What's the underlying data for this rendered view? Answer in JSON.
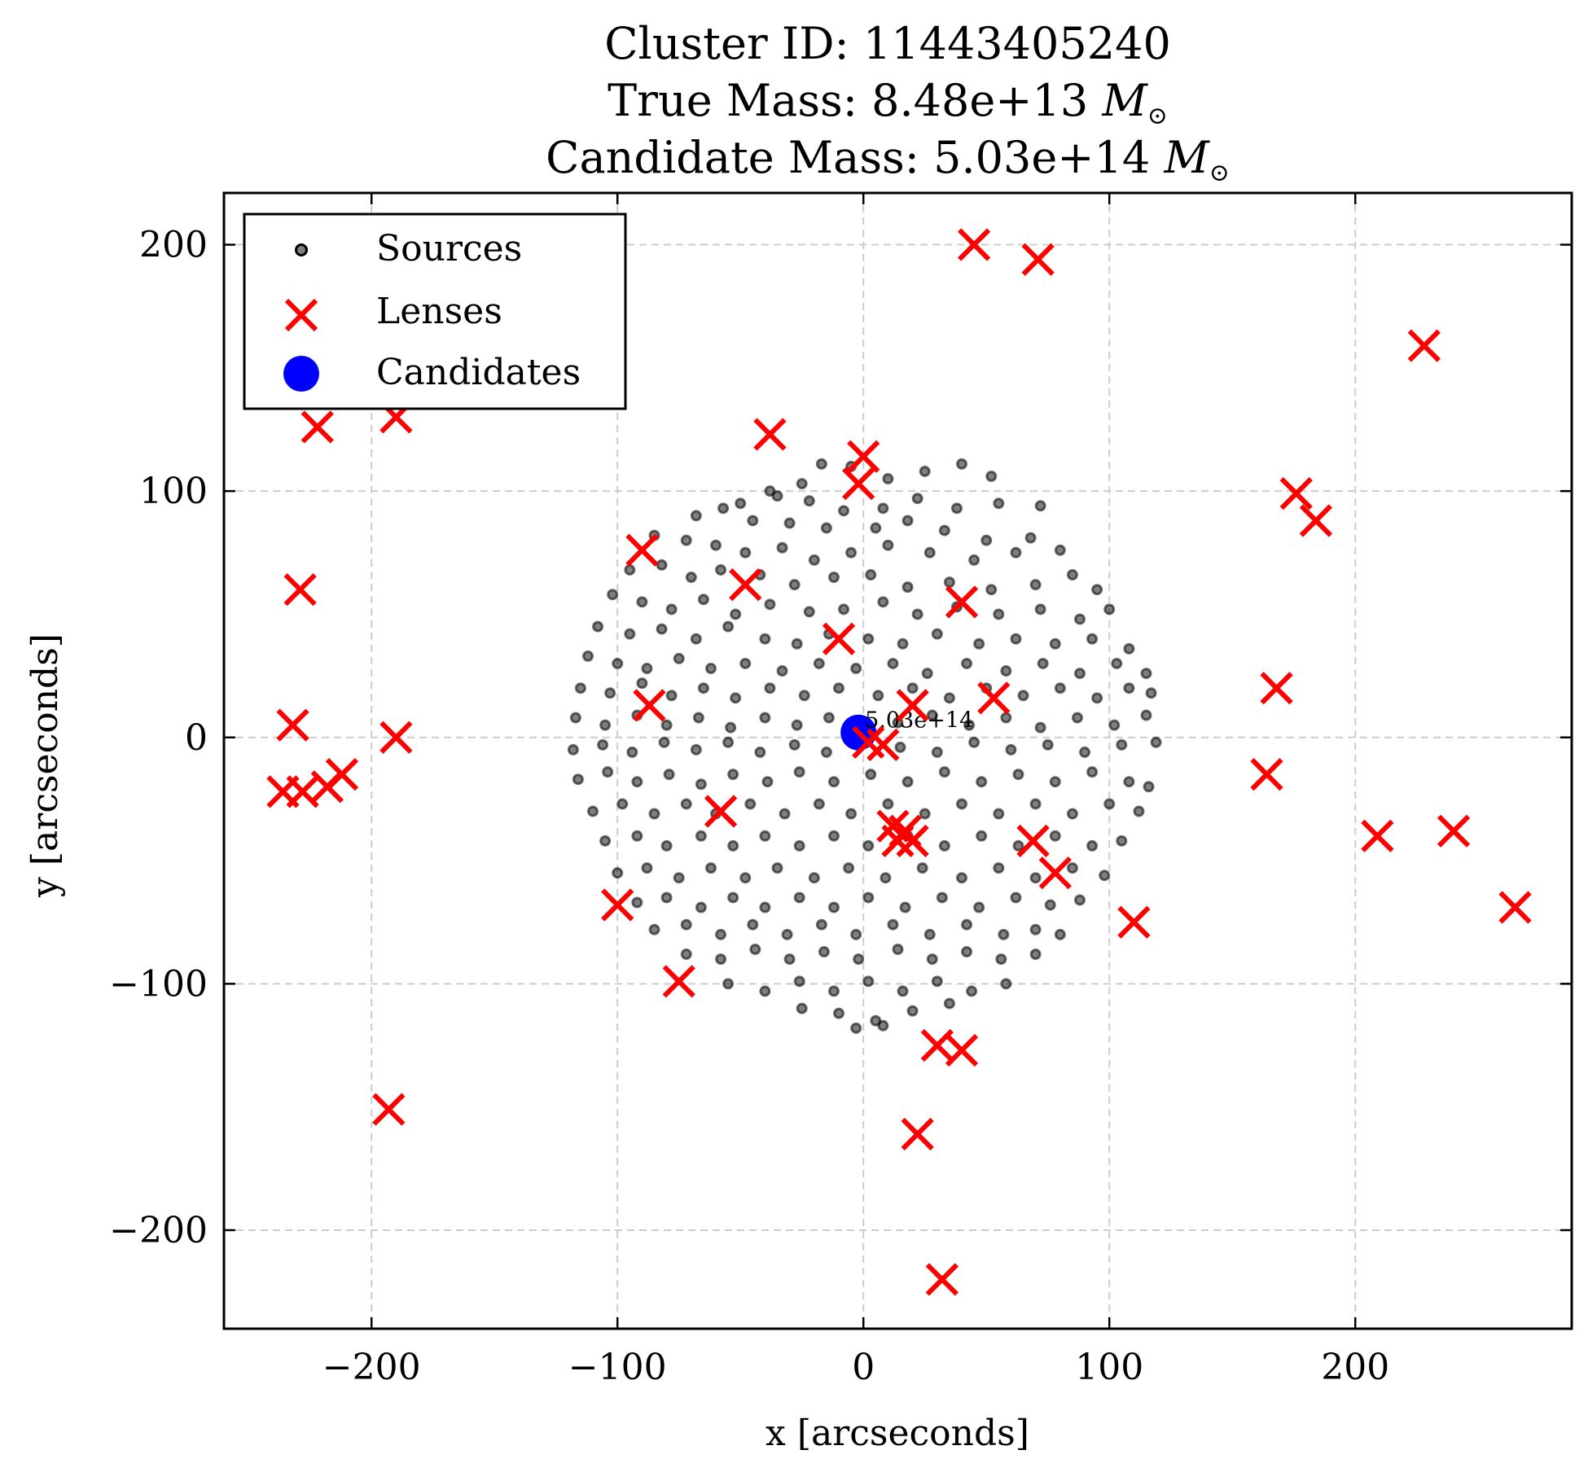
{
  "chart_data": {
    "type": "scatter",
    "title_lines": [
      "Cluster ID: 11443405240",
      "True Mass: 8.48e+13",
      "Candidate Mass: 5.03e+14"
    ],
    "title_unit": "M",
    "xlabel": "x [arcseconds]",
    "ylabel": "y [arcseconds]",
    "xlim": [
      -260,
      288
    ],
    "ylim": [
      -240,
      221
    ],
    "xticks": [
      -200,
      -100,
      0,
      100,
      200
    ],
    "yticks": [
      -200,
      -100,
      0,
      100,
      200
    ],
    "xtick_labels": [
      "−200",
      "−100",
      "0",
      "100",
      "200"
    ],
    "ytick_labels": [
      "−200",
      "−100",
      "0",
      "100",
      "200"
    ],
    "grid": true,
    "legend_position": "top-left",
    "legend": [
      {
        "series": "sources",
        "label": "Sources"
      },
      {
        "series": "lenses",
        "label": "Lenses"
      },
      {
        "series": "candidates",
        "label": "Candidates"
      }
    ],
    "colors": {
      "sources": "#000000",
      "lenses": "#ff0000",
      "candidates": "#0000ff",
      "grid": "#cccccc"
    },
    "series": {
      "candidates": [
        {
          "x": -2,
          "y": 2,
          "label": "5.03e+14"
        }
      ],
      "lenses": [
        [
          45,
          200
        ],
        [
          71,
          194
        ],
        [
          228,
          159
        ],
        [
          -222,
          126
        ],
        [
          -190,
          130
        ],
        [
          -38,
          123
        ],
        [
          0,
          114
        ],
        [
          -2,
          103
        ],
        [
          176,
          99
        ],
        [
          184,
          88
        ],
        [
          -90,
          76
        ],
        [
          -48,
          62
        ],
        [
          -229,
          60
        ],
        [
          40,
          55
        ],
        [
          -10,
          40
        ],
        [
          168,
          20
        ],
        [
          53,
          16
        ],
        [
          20,
          13
        ],
        [
          -87,
          13
        ],
        [
          -232,
          5
        ],
        [
          -190,
          0
        ],
        [
          2,
          -2
        ],
        [
          8,
          -3
        ],
        [
          164,
          -15
        ],
        [
          -212,
          -15
        ],
        [
          -218,
          -20
        ],
        [
          -228,
          -22
        ],
        [
          -236,
          -22
        ],
        [
          -58,
          -30
        ],
        [
          12,
          -36
        ],
        [
          17,
          -38
        ],
        [
          20,
          -42
        ],
        [
          14,
          -42
        ],
        [
          69,
          -42
        ],
        [
          209,
          -40
        ],
        [
          240,
          -38
        ],
        [
          78,
          -55
        ],
        [
          -100,
          -68
        ],
        [
          265,
          -69
        ],
        [
          110,
          -75
        ],
        [
          -75,
          -99
        ],
        [
          30,
          -125
        ],
        [
          40,
          -127
        ],
        [
          -193,
          -151
        ],
        [
          22,
          -161
        ],
        [
          32,
          -220
        ]
      ],
      "sources": [
        [
          -38,
          100
        ],
        [
          -25,
          103
        ],
        [
          -17,
          111
        ],
        [
          -5,
          110
        ],
        [
          10,
          105
        ],
        [
          25,
          108
        ],
        [
          40,
          111
        ],
        [
          52,
          106
        ],
        [
          -50,
          95
        ],
        [
          -35,
          98
        ],
        [
          -22,
          96
        ],
        [
          -8,
          92
        ],
        [
          8,
          93
        ],
        [
          22,
          97
        ],
        [
          38,
          93
        ],
        [
          55,
          95
        ],
        [
          72,
          94
        ],
        [
          -68,
          90
        ],
        [
          -57,
          93
        ],
        [
          -45,
          88
        ],
        [
          -30,
          87
        ],
        [
          -15,
          85
        ],
        [
          5,
          85
        ],
        [
          18,
          88
        ],
        [
          33,
          84
        ],
        [
          50,
          80
        ],
        [
          68,
          81
        ],
        [
          -85,
          82
        ],
        [
          -72,
          80
        ],
        [
          -60,
          78
        ],
        [
          -48,
          75
        ],
        [
          -33,
          77
        ],
        [
          -20,
          72
        ],
        [
          -5,
          75
        ],
        [
          10,
          78
        ],
        [
          27,
          75
        ],
        [
          45,
          72
        ],
        [
          62,
          75
        ],
        [
          80,
          76
        ],
        [
          -95,
          68
        ],
        [
          -82,
          70
        ],
        [
          -70,
          65
        ],
        [
          -58,
          68
        ],
        [
          -42,
          66
        ],
        [
          -28,
          62
        ],
        [
          -12,
          65
        ],
        [
          3,
          66
        ],
        [
          18,
          61
        ],
        [
          35,
          63
        ],
        [
          52,
          60
        ],
        [
          70,
          62
        ],
        [
          85,
          66
        ],
        [
          95,
          60
        ],
        [
          -102,
          58
        ],
        [
          -90,
          55
        ],
        [
          -78,
          52
        ],
        [
          -65,
          56
        ],
        [
          -52,
          50
        ],
        [
          -38,
          54
        ],
        [
          -22,
          51
        ],
        [
          -8,
          52
        ],
        [
          8,
          55
        ],
        [
          22,
          50
        ],
        [
          38,
          53
        ],
        [
          55,
          50
        ],
        [
          72,
          52
        ],
        [
          88,
          48
        ],
        [
          100,
          52
        ],
        [
          -108,
          45
        ],
        [
          -95,
          42
        ],
        [
          -82,
          44
        ],
        [
          -68,
          40
        ],
        [
          -55,
          45
        ],
        [
          -40,
          40
        ],
        [
          -27,
          38
        ],
        [
          -14,
          42
        ],
        [
          2,
          40
        ],
        [
          16,
          38
        ],
        [
          30,
          42
        ],
        [
          47,
          38
        ],
        [
          62,
          40
        ],
        [
          78,
          38
        ],
        [
          93,
          40
        ],
        [
          108,
          36
        ],
        [
          -112,
          33
        ],
        [
          -100,
          30
        ],
        [
          -88,
          28
        ],
        [
          -75,
          32
        ],
        [
          -62,
          28
        ],
        [
          -48,
          30
        ],
        [
          -33,
          27
        ],
        [
          -18,
          30
        ],
        [
          -3,
          28
        ],
        [
          12,
          30
        ],
        [
          26,
          26
        ],
        [
          42,
          30
        ],
        [
          58,
          27
        ],
        [
          73,
          30
        ],
        [
          88,
          26
        ],
        [
          103,
          30
        ],
        [
          115,
          26
        ],
        [
          -115,
          20
        ],
        [
          -103,
          18
        ],
        [
          -90,
          22
        ],
        [
          -78,
          17
        ],
        [
          -65,
          20
        ],
        [
          -52,
          16
        ],
        [
          -38,
          20
        ],
        [
          -24,
          17
        ],
        [
          -10,
          20
        ],
        [
          6,
          17
        ],
        [
          20,
          20
        ],
        [
          35,
          16
        ],
        [
          50,
          20
        ],
        [
          65,
          17
        ],
        [
          80,
          20
        ],
        [
          95,
          16
        ],
        [
          108,
          20
        ],
        [
          117,
          18
        ],
        [
          -117,
          8
        ],
        [
          -105,
          5
        ],
        [
          -92,
          9
        ],
        [
          -80,
          5
        ],
        [
          -67,
          8
        ],
        [
          -54,
          4
        ],
        [
          -40,
          8
        ],
        [
          -27,
          5
        ],
        [
          -14,
          8
        ],
        [
          14,
          6
        ],
        [
          28,
          9
        ],
        [
          43,
          5
        ],
        [
          58,
          8
        ],
        [
          72,
          4
        ],
        [
          87,
          8
        ],
        [
          102,
          5
        ],
        [
          115,
          9
        ],
        [
          -118,
          -5
        ],
        [
          -106,
          -3
        ],
        [
          -94,
          -6
        ],
        [
          -81,
          -2
        ],
        [
          -68,
          -5
        ],
        [
          -55,
          -2
        ],
        [
          -42,
          -6
        ],
        [
          -28,
          -3
        ],
        [
          -15,
          -6
        ],
        [
          15,
          -4
        ],
        [
          30,
          -6
        ],
        [
          45,
          -2
        ],
        [
          60,
          -5
        ],
        [
          75,
          -3
        ],
        [
          90,
          -6
        ],
        [
          105,
          -3
        ],
        [
          119,
          -2
        ],
        [
          -116,
          -17
        ],
        [
          -104,
          -14
        ],
        [
          -92,
          -18
        ],
        [
          -79,
          -15
        ],
        [
          -66,
          -19
        ],
        [
          -53,
          -15
        ],
        [
          -39,
          -18
        ],
        [
          -26,
          -14
        ],
        [
          -12,
          -18
        ],
        [
          3,
          -15
        ],
        [
          18,
          -18
        ],
        [
          33,
          -14
        ],
        [
          48,
          -18
        ],
        [
          63,
          -15
        ],
        [
          78,
          -18
        ],
        [
          93,
          -14
        ],
        [
          108,
          -18
        ],
        [
          116,
          -20
        ],
        [
          -110,
          -30
        ],
        [
          -98,
          -27
        ],
        [
          -85,
          -31
        ],
        [
          -72,
          -27
        ],
        [
          -60,
          -31
        ],
        [
          -46,
          -27
        ],
        [
          -32,
          -31
        ],
        [
          -18,
          -27
        ],
        [
          -5,
          -31
        ],
        [
          10,
          -27
        ],
        [
          25,
          -31
        ],
        [
          40,
          -27
        ],
        [
          55,
          -31
        ],
        [
          70,
          -27
        ],
        [
          85,
          -31
        ],
        [
          100,
          -27
        ],
        [
          112,
          -30
        ],
        [
          -105,
          -42
        ],
        [
          -92,
          -40
        ],
        [
          -80,
          -44
        ],
        [
          -66,
          -40
        ],
        [
          -53,
          -44
        ],
        [
          -40,
          -40
        ],
        [
          -26,
          -44
        ],
        [
          -12,
          -40
        ],
        [
          2,
          -44
        ],
        [
          18,
          -40
        ],
        [
          33,
          -44
        ],
        [
          48,
          -40
        ],
        [
          63,
          -44
        ],
        [
          78,
          -40
        ],
        [
          93,
          -44
        ],
        [
          105,
          -42
        ],
        [
          -100,
          -55
        ],
        [
          -88,
          -53
        ],
        [
          -75,
          -57
        ],
        [
          -62,
          -53
        ],
        [
          -48,
          -57
        ],
        [
          -35,
          -53
        ],
        [
          -20,
          -57
        ],
        [
          -6,
          -53
        ],
        [
          9,
          -57
        ],
        [
          24,
          -53
        ],
        [
          40,
          -57
        ],
        [
          55,
          -53
        ],
        [
          70,
          -57
        ],
        [
          85,
          -53
        ],
        [
          98,
          -56
        ],
        [
          -92,
          -67
        ],
        [
          -80,
          -65
        ],
        [
          -66,
          -69
        ],
        [
          -53,
          -65
        ],
        [
          -40,
          -69
        ],
        [
          -26,
          -65
        ],
        [
          -12,
          -69
        ],
        [
          2,
          -65
        ],
        [
          17,
          -69
        ],
        [
          32,
          -65
        ],
        [
          47,
          -69
        ],
        [
          62,
          -65
        ],
        [
          76,
          -68
        ],
        [
          88,
          -66
        ],
        [
          -85,
          -78
        ],
        [
          -72,
          -76
        ],
        [
          -58,
          -80
        ],
        [
          -45,
          -76
        ],
        [
          -31,
          -80
        ],
        [
          -17,
          -76
        ],
        [
          -3,
          -80
        ],
        [
          12,
          -76
        ],
        [
          27,
          -80
        ],
        [
          42,
          -76
        ],
        [
          57,
          -80
        ],
        [
          70,
          -78
        ],
        [
          80,
          -80
        ],
        [
          -72,
          -88
        ],
        [
          -58,
          -90
        ],
        [
          -44,
          -86
        ],
        [
          -30,
          -90
        ],
        [
          -16,
          -87
        ],
        [
          -2,
          -90
        ],
        [
          14,
          -86
        ],
        [
          28,
          -90
        ],
        [
          42,
          -87
        ],
        [
          56,
          -90
        ],
        [
          70,
          -88
        ],
        [
          -55,
          -100
        ],
        [
          -40,
          -103
        ],
        [
          -26,
          -99
        ],
        [
          -12,
          -103
        ],
        [
          2,
          -99
        ],
        [
          16,
          -103
        ],
        [
          30,
          -99
        ],
        [
          44,
          -103
        ],
        [
          58,
          -100
        ],
        [
          -25,
          -110
        ],
        [
          -10,
          -112
        ],
        [
          5,
          -115
        ],
        [
          20,
          -111
        ],
        [
          35,
          -108
        ],
        [
          -3,
          -118
        ],
        [
          8,
          -117
        ]
      ]
    }
  }
}
